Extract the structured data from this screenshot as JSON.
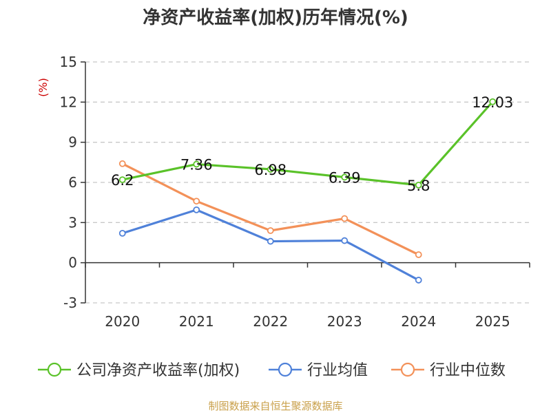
{
  "chart_data": {
    "type": "line",
    "title": "净资产收益率(加权)历年情况(%)",
    "ylabel": "(%)",
    "xlabel": "",
    "categories": [
      "2020",
      "2021",
      "2022",
      "2023",
      "2024",
      "2025"
    ],
    "ylim": [
      -3,
      15
    ],
    "yticks": [
      -3,
      0,
      3,
      6,
      9,
      12,
      15
    ],
    "ytick_labels": [
      "-3",
      "0",
      "3",
      "6",
      "9",
      "12",
      "15"
    ],
    "grid": true,
    "legend_position": "bottom",
    "series": [
      {
        "name": "公司净资产收益率(加权)",
        "color": "#5ac229",
        "values": [
          6.2,
          7.36,
          6.98,
          6.39,
          5.8,
          12.03
        ],
        "labels": [
          "6.2",
          "7.36",
          "6.98",
          "6.39",
          "5.8",
          "12.03"
        ]
      },
      {
        "name": "行业均值",
        "color": "#4f81d9",
        "values": [
          2.2,
          3.95,
          1.6,
          1.65,
          -1.3,
          null
        ]
      },
      {
        "name": "行业中位数",
        "color": "#f39159",
        "values": [
          7.4,
          4.6,
          2.4,
          3.3,
          0.6,
          null
        ]
      }
    ],
    "source": "制图数据来自恒生聚源数据库"
  }
}
